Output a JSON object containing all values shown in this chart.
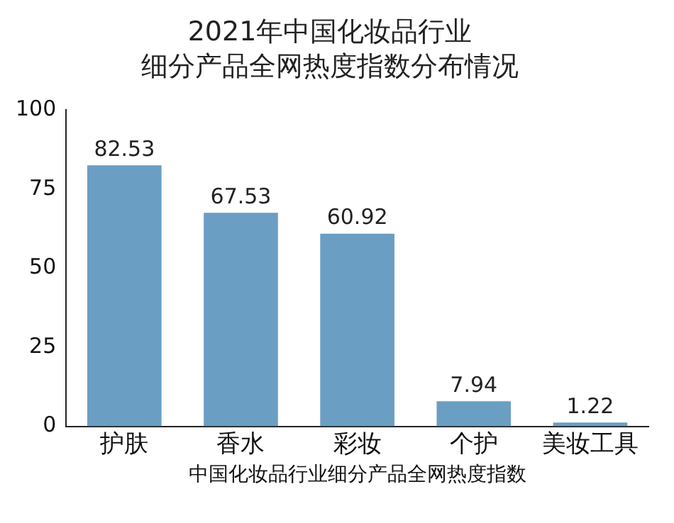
{
  "chart_data": {
    "type": "bar",
    "title": "2021年中国化妆品行业",
    "subtitle": "细分产品全网热度指数分布情况",
    "xlabel": "中国化妆品行业细分产品全网热度指数",
    "categories": [
      "护肤",
      "香水",
      "彩妆",
      "个护",
      "美妆工具"
    ],
    "values": [
      82.53,
      67.53,
      60.92,
      7.94,
      1.22
    ],
    "color": "#6b9ec3",
    "ylim": [
      0,
      100
    ],
    "yticks": [
      0,
      25,
      50,
      75,
      100
    ],
    "data_labels": true,
    "grid": false,
    "legend": false
  }
}
